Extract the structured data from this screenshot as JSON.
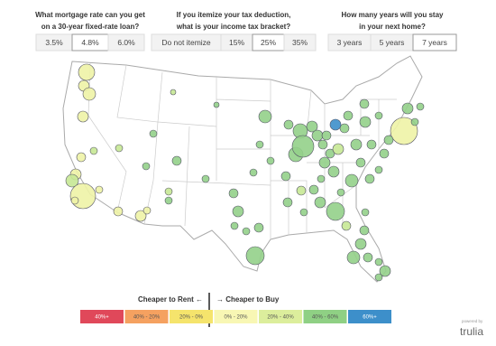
{
  "controls": [
    {
      "question": [
        "What mortgage rate can you get",
        "on a 30-year fixed-rate loan?"
      ],
      "options": [
        "3.5%",
        "4.8%",
        "6.0%"
      ]
    },
    {
      "question": [
        "If you itemize your tax deduction,",
        "what is your income tax bracket?"
      ],
      "options": [
        "Do not itemize",
        "15%",
        "25%",
        "35%"
      ]
    },
    {
      "question": [
        "How many years will you stay",
        "in your next home?"
      ],
      "options": [
        "3 years",
        "5 years",
        "7 years"
      ]
    }
  ],
  "legend": {
    "rent_label": "Cheaper to Rent ←",
    "buy_label": "→ Cheaper to Buy",
    "items": [
      {
        "label": "40%+",
        "color": "#e0485a"
      },
      {
        "label": "40% - 20%",
        "color": "#f5a160"
      },
      {
        "label": "20% - 0%",
        "color": "#f5e46c"
      },
      {
        "label": "0% - 20%",
        "color": "#f8f7b4"
      },
      {
        "label": "20% - 40%",
        "color": "#dcee9c"
      },
      {
        "label": "40% - 60%",
        "color": "#8fd084"
      },
      {
        "label": "60%+",
        "color": "#3d8fca"
      }
    ]
  },
  "footer": {
    "powered": "powered by",
    "brand": "trulia"
  }
}
